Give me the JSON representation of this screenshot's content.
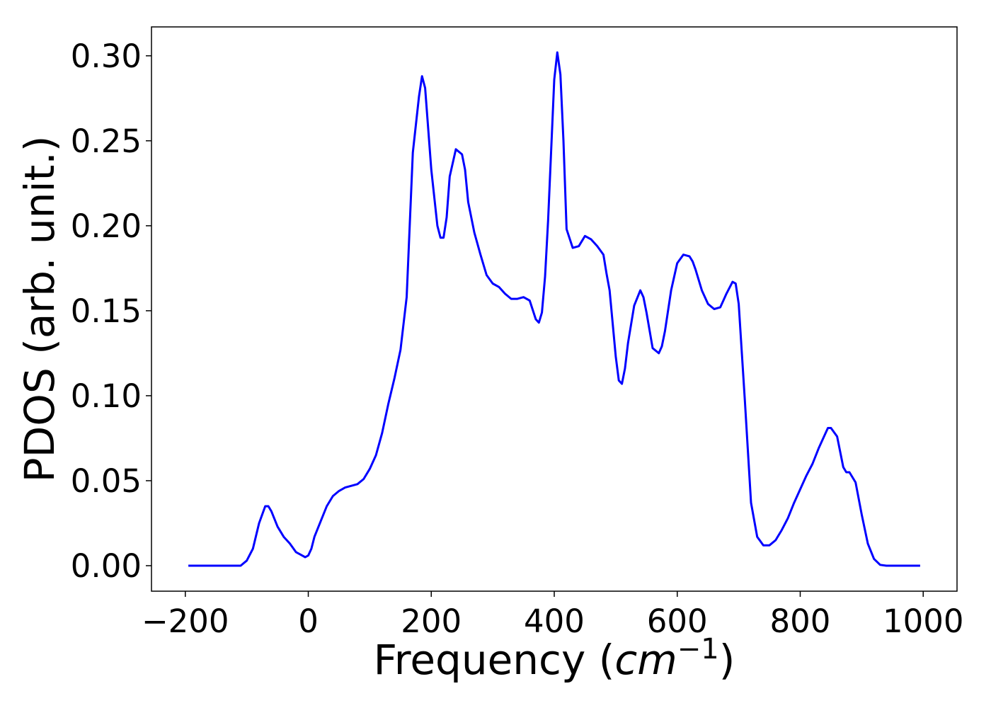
{
  "chart_data": {
    "type": "line",
    "title": "",
    "xlabel": "Frequency (",
    "xlabel_unit": "cm",
    "xlabel_exp": "−1",
    "xlabel_close": ")",
    "ylabel": "PDOS (arb. unit.)",
    "xlim": [
      -255,
      1055
    ],
    "ylim": [
      -0.015,
      0.317
    ],
    "grid": false,
    "legend": "none",
    "xticks": [
      -200,
      0,
      200,
      400,
      600,
      800,
      1000
    ],
    "xtick_labels": [
      "−200",
      "0",
      "200",
      "400",
      "600",
      "800",
      "1000"
    ],
    "yticks": [
      0.0,
      0.05,
      0.1,
      0.15,
      0.2,
      0.25,
      0.3
    ],
    "ytick_labels": [
      "0.00",
      "0.05",
      "0.10",
      "0.15",
      "0.20",
      "0.25",
      "0.30"
    ],
    "series": [
      {
        "color": "#0000ff",
        "x": [
          -195,
          -110,
          -100,
          -90,
          -80,
          -70,
          -65,
          -60,
          -50,
          -40,
          -30,
          -20,
          -10,
          -5,
          0,
          5,
          10,
          20,
          30,
          40,
          50,
          60,
          70,
          80,
          90,
          100,
          110,
          120,
          130,
          140,
          150,
          160,
          170,
          180,
          185,
          190,
          200,
          210,
          215,
          220,
          225,
          230,
          240,
          250,
          255,
          260,
          270,
          280,
          290,
          300,
          310,
          320,
          330,
          340,
          350,
          360,
          370,
          375,
          380,
          385,
          390,
          400,
          405,
          410,
          415,
          420,
          430,
          440,
          450,
          460,
          470,
          480,
          485,
          490,
          500,
          505,
          510,
          515,
          520,
          530,
          540,
          545,
          550,
          560,
          570,
          575,
          580,
          590,
          600,
          610,
          620,
          625,
          630,
          640,
          650,
          660,
          670,
          675,
          680,
          690,
          695,
          700,
          710,
          720,
          730,
          740,
          750,
          760,
          770,
          780,
          790,
          800,
          810,
          820,
          830,
          840,
          845,
          850,
          860,
          870,
          875,
          880,
          890,
          900,
          910,
          920,
          930,
          940,
          995
        ],
        "y": [
          0,
          0,
          0.003,
          0.01,
          0.025,
          0.035,
          0.035,
          0.032,
          0.023,
          0.017,
          0.013,
          0.008,
          0.006,
          0.005,
          0.006,
          0.01,
          0.017,
          0.026,
          0.035,
          0.041,
          0.044,
          0.046,
          0.047,
          0.048,
          0.051,
          0.057,
          0.065,
          0.078,
          0.095,
          0.11,
          0.127,
          0.158,
          0.243,
          0.276,
          0.288,
          0.281,
          0.233,
          0.2,
          0.193,
          0.193,
          0.205,
          0.229,
          0.245,
          0.242,
          0.233,
          0.214,
          0.196,
          0.183,
          0.171,
          0.166,
          0.164,
          0.16,
          0.157,
          0.157,
          0.158,
          0.156,
          0.145,
          0.143,
          0.149,
          0.17,
          0.203,
          0.286,
          0.302,
          0.289,
          0.25,
          0.198,
          0.187,
          0.188,
          0.194,
          0.192,
          0.188,
          0.183,
          0.172,
          0.162,
          0.123,
          0.109,
          0.107,
          0.116,
          0.131,
          0.153,
          0.162,
          0.158,
          0.149,
          0.128,
          0.125,
          0.129,
          0.138,
          0.162,
          0.178,
          0.183,
          0.182,
          0.179,
          0.174,
          0.162,
          0.154,
          0.151,
          0.152,
          0.156,
          0.16,
          0.167,
          0.166,
          0.154,
          0.097,
          0.037,
          0.017,
          0.012,
          0.012,
          0.015,
          0.021,
          0.028,
          0.037,
          0.045,
          0.053,
          0.06,
          0.069,
          0.077,
          0.081,
          0.081,
          0.076,
          0.058,
          0.055,
          0.055,
          0.049,
          0.03,
          0.013,
          0.004,
          0.0005,
          0,
          0
        ]
      }
    ]
  }
}
